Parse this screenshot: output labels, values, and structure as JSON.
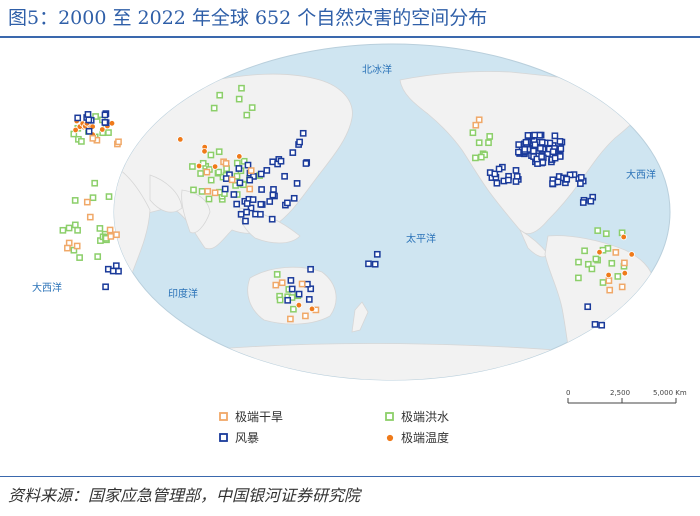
{
  "title": "图5：2000 至 2022 年全球 652 个自然灾害的空间分布",
  "source": "资料来源：国家应急管理部，中国银河证券研究院",
  "ocean_labels": {
    "arctic": "北冰洋",
    "atlantic_east": "大西洋",
    "atlantic_west": "大西洋",
    "pacific": "太平洋",
    "indian": "印度洋"
  },
  "legend": {
    "drought": "极端干旱",
    "flood": "极端洪水",
    "storm": "风暴",
    "temperature": "极端温度"
  },
  "scale_bar": {
    "labels": [
      "0",
      "2,500",
      "5,000 Km"
    ]
  },
  "colors": {
    "ocean": "#cfe5f1",
    "land": "#f2f2f2",
    "drought": "#f0a868",
    "flood": "#8ccf6a",
    "storm": "#1a3a9a",
    "temperature": "#ef7a1a",
    "title": "#2f5fa8"
  }
}
